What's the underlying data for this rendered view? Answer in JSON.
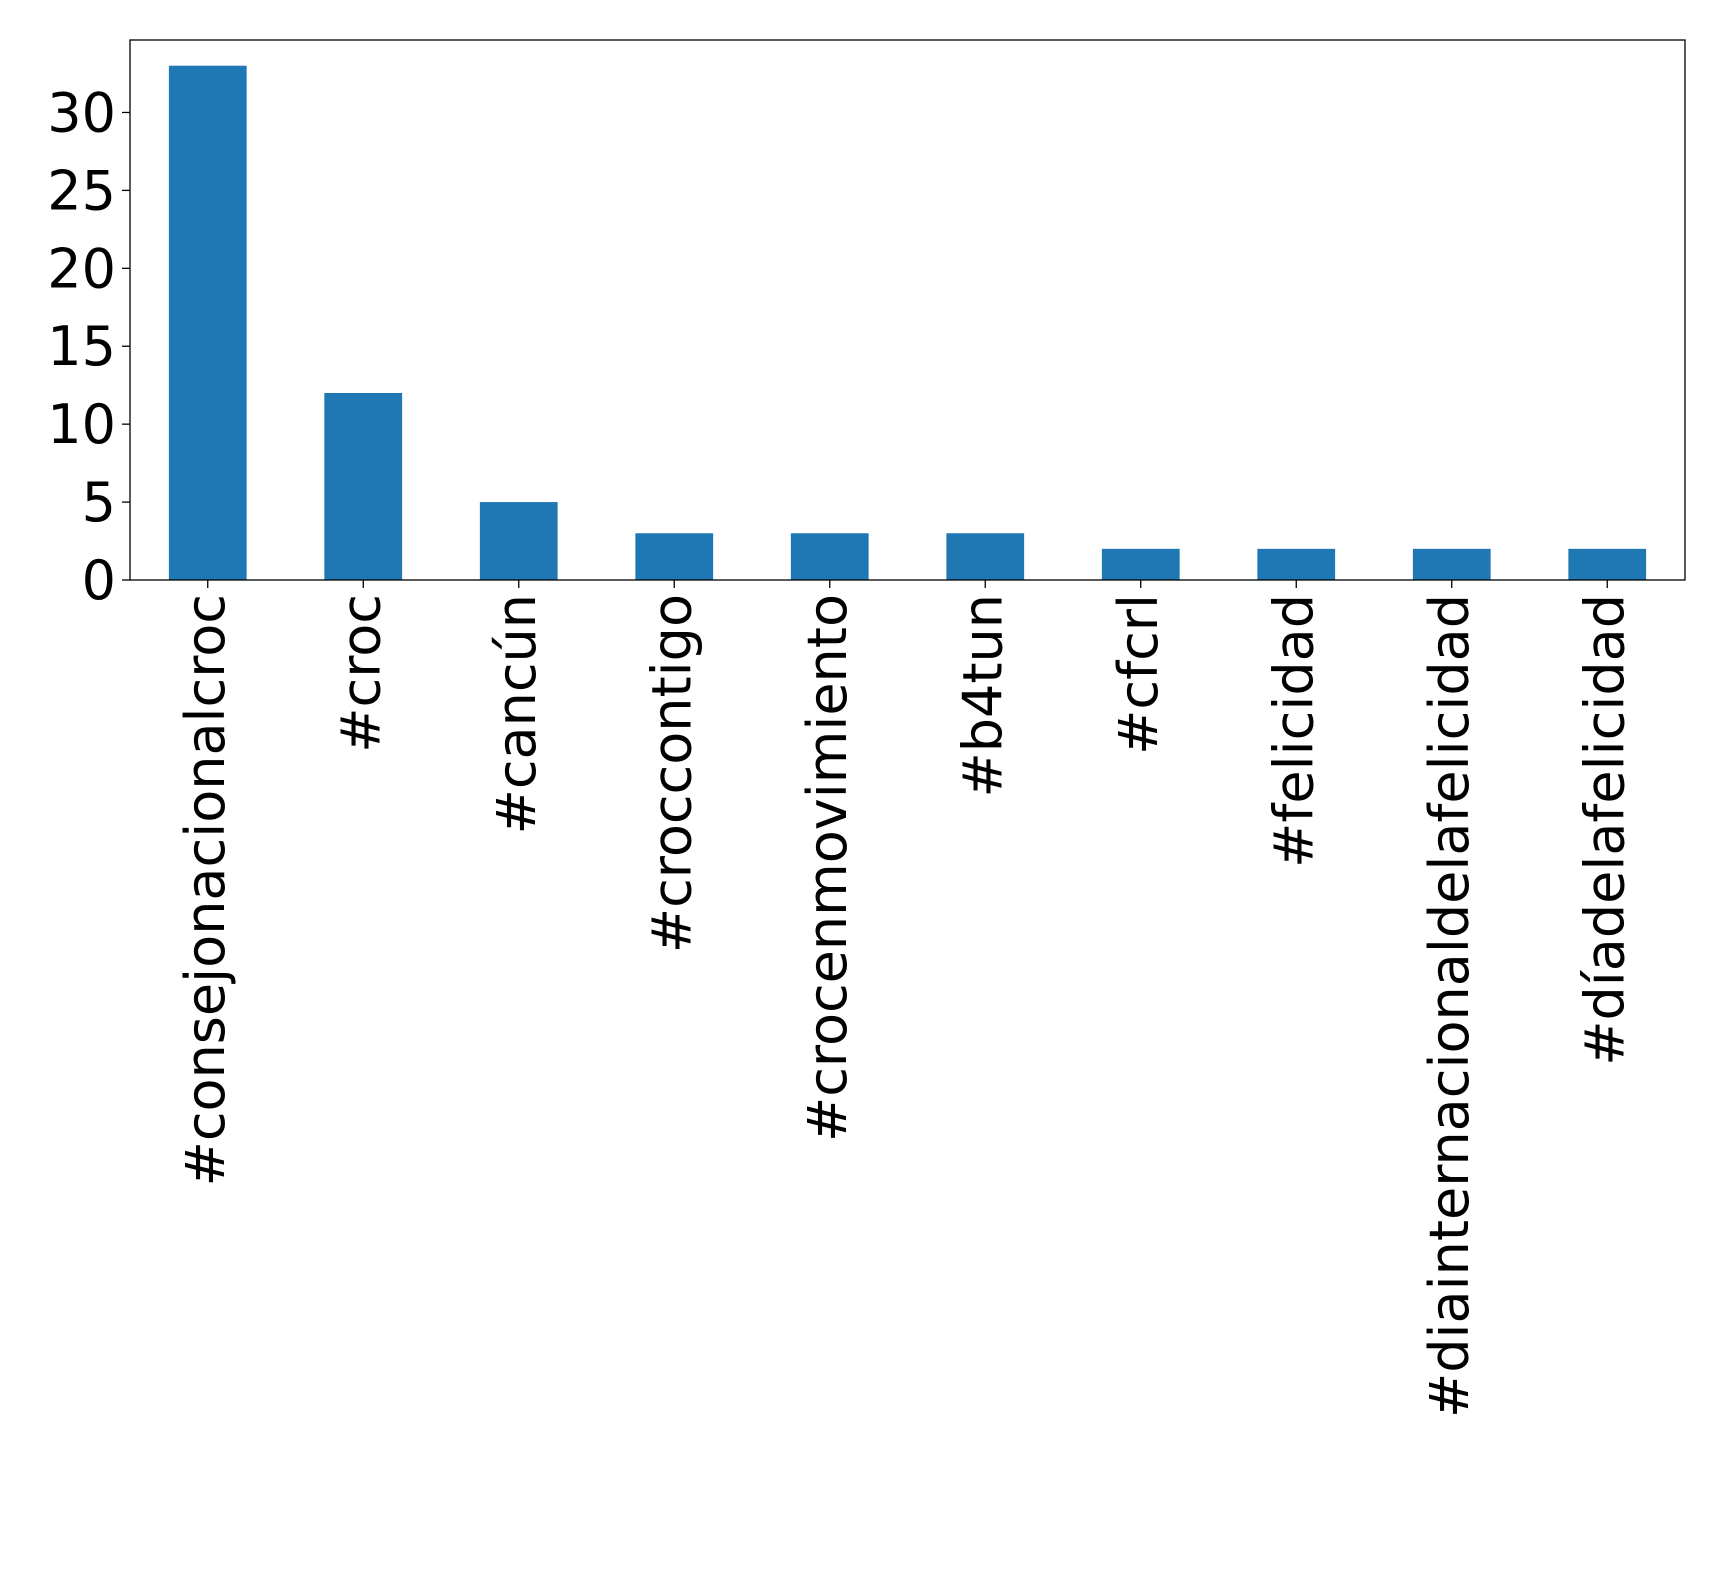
{
  "chart_data": {
    "type": "bar",
    "title": "",
    "xlabel": "",
    "ylabel": "",
    "categories": [
      "#consejonacionalcroc",
      "#croc",
      "#cancún",
      "#croccontigo",
      "#crocenmovimiento",
      "#b4tun",
      "#cfcrl",
      "#felicidad",
      "#diainternacionaldelafelicidad",
      "#díadelafelicidad"
    ],
    "values": [
      33,
      12,
      5,
      3,
      3,
      3,
      2,
      2,
      2,
      2
    ],
    "ylim": [
      0,
      34.65
    ],
    "yticks": [
      0,
      5,
      10,
      15,
      20,
      25,
      30
    ],
    "ytick_labels": [
      "0",
      "5",
      "10",
      "15",
      "20",
      "25",
      "30"
    ],
    "bar_color": "#1f77b4",
    "grid": false,
    "legend": "none"
  }
}
